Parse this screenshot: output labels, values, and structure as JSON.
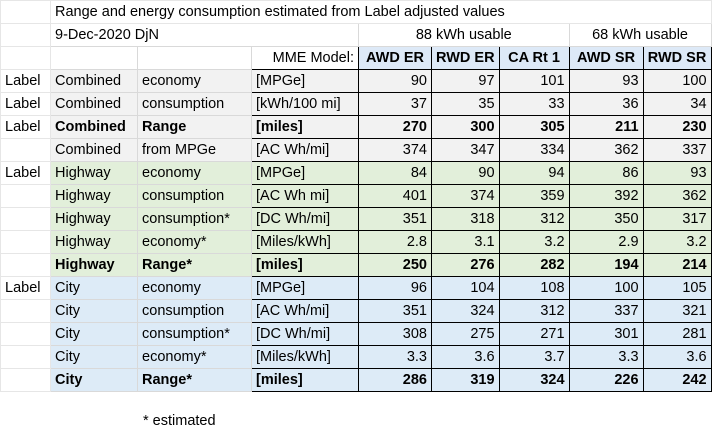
{
  "title": "Range and energy consumption estimated from Label adjusted values",
  "date_line": "9-Dec-2020 DjN",
  "group_88": "88 kWh usable",
  "group_68": "68 kWh usable",
  "model_label": "MME Model:",
  "models": [
    "AWD ER",
    "RWD ER",
    "CA Rt 1",
    "AWD SR",
    "RWD SR"
  ],
  "rows": [
    {
      "label": "Label",
      "a": "Combined",
      "b": "economy",
      "unit": "[MPGe]",
      "v": [
        "90",
        "97",
        "101",
        "93",
        "100"
      ]
    },
    {
      "label": "Label",
      "a": "Combined",
      "b": "consumption",
      "unit": "[kWh/100 mi]",
      "v": [
        "37",
        "35",
        "33",
        "36",
        "34"
      ]
    },
    {
      "label": "Label",
      "a": "Combined",
      "b": "Range",
      "unit": "[miles]",
      "v": [
        "270",
        "300",
        "305",
        "211",
        "230"
      ]
    },
    {
      "label": "",
      "a": "Combined",
      "b": "from MPGe",
      "unit": "[AC Wh/mi]",
      "v": [
        "374",
        "347",
        "334",
        "362",
        "337"
      ]
    },
    {
      "label": "Label",
      "a": "Highway",
      "b": "economy",
      "unit": "[MPGe]",
      "v": [
        "84",
        "90",
        "94",
        "86",
        "93"
      ]
    },
    {
      "label": "",
      "a": "Highway",
      "b": "consumption",
      "unit": "[AC Wh mi]",
      "v": [
        "401",
        "374",
        "359",
        "392",
        "362"
      ]
    },
    {
      "label": "",
      "a": "Highway",
      "b": "consumption*",
      "unit": "[DC Wh/mi]",
      "v": [
        "351",
        "318",
        "312",
        "350",
        "317"
      ]
    },
    {
      "label": "",
      "a": "Highway",
      "b": "economy*",
      "unit": "[Miles/kWh]",
      "v": [
        "2.8",
        "3.1",
        "3.2",
        "2.9",
        "3.2"
      ]
    },
    {
      "label": "",
      "a": "Highway",
      "b": "Range*",
      "unit": "[miles]",
      "v": [
        "250",
        "276",
        "282",
        "194",
        "214"
      ]
    },
    {
      "label": "Label",
      "a": "City",
      "b": "economy",
      "unit": "[MPGe]",
      "v": [
        "96",
        "104",
        "108",
        "100",
        "105"
      ]
    },
    {
      "label": "",
      "a": "City",
      "b": "consumption",
      "unit": "[AC Wh/mi]",
      "v": [
        "351",
        "324",
        "312",
        "337",
        "321"
      ]
    },
    {
      "label": "",
      "a": "City",
      "b": "consumption*",
      "unit": "[DC Wh/mi]",
      "v": [
        "308",
        "275",
        "271",
        "301",
        "281"
      ]
    },
    {
      "label": "",
      "a": "City",
      "b": "economy*",
      "unit": "[Miles/kWh]",
      "v": [
        "3.3",
        "3.6",
        "3.7",
        "3.3",
        "3.6"
      ]
    },
    {
      "label": "",
      "a": "City",
      "b": "Range*",
      "unit": "[miles]",
      "v": [
        "286",
        "319",
        "324",
        "226",
        "242"
      ]
    }
  ],
  "footnote": "* estimated"
}
